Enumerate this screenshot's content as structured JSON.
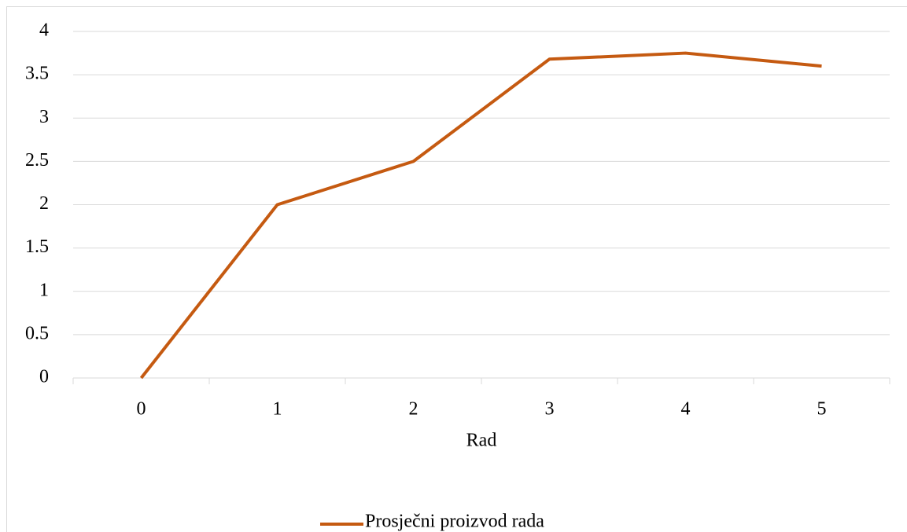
{
  "chart_data": {
    "type": "line",
    "x_label": "Rad",
    "categories": [
      "0",
      "1",
      "2",
      "3",
      "4",
      "5"
    ],
    "series": [
      {
        "name": "Prosječni proizvod rada",
        "color": "#c55a11",
        "values": [
          0,
          2,
          2.5,
          3.68,
          3.75,
          3.6
        ]
      }
    ],
    "ylim": [
      0,
      4
    ],
    "yticks": [
      0,
      0.5,
      1,
      1.5,
      2,
      2.5,
      3,
      3.5,
      4
    ],
    "grid": true,
    "legend": "bottom"
  }
}
